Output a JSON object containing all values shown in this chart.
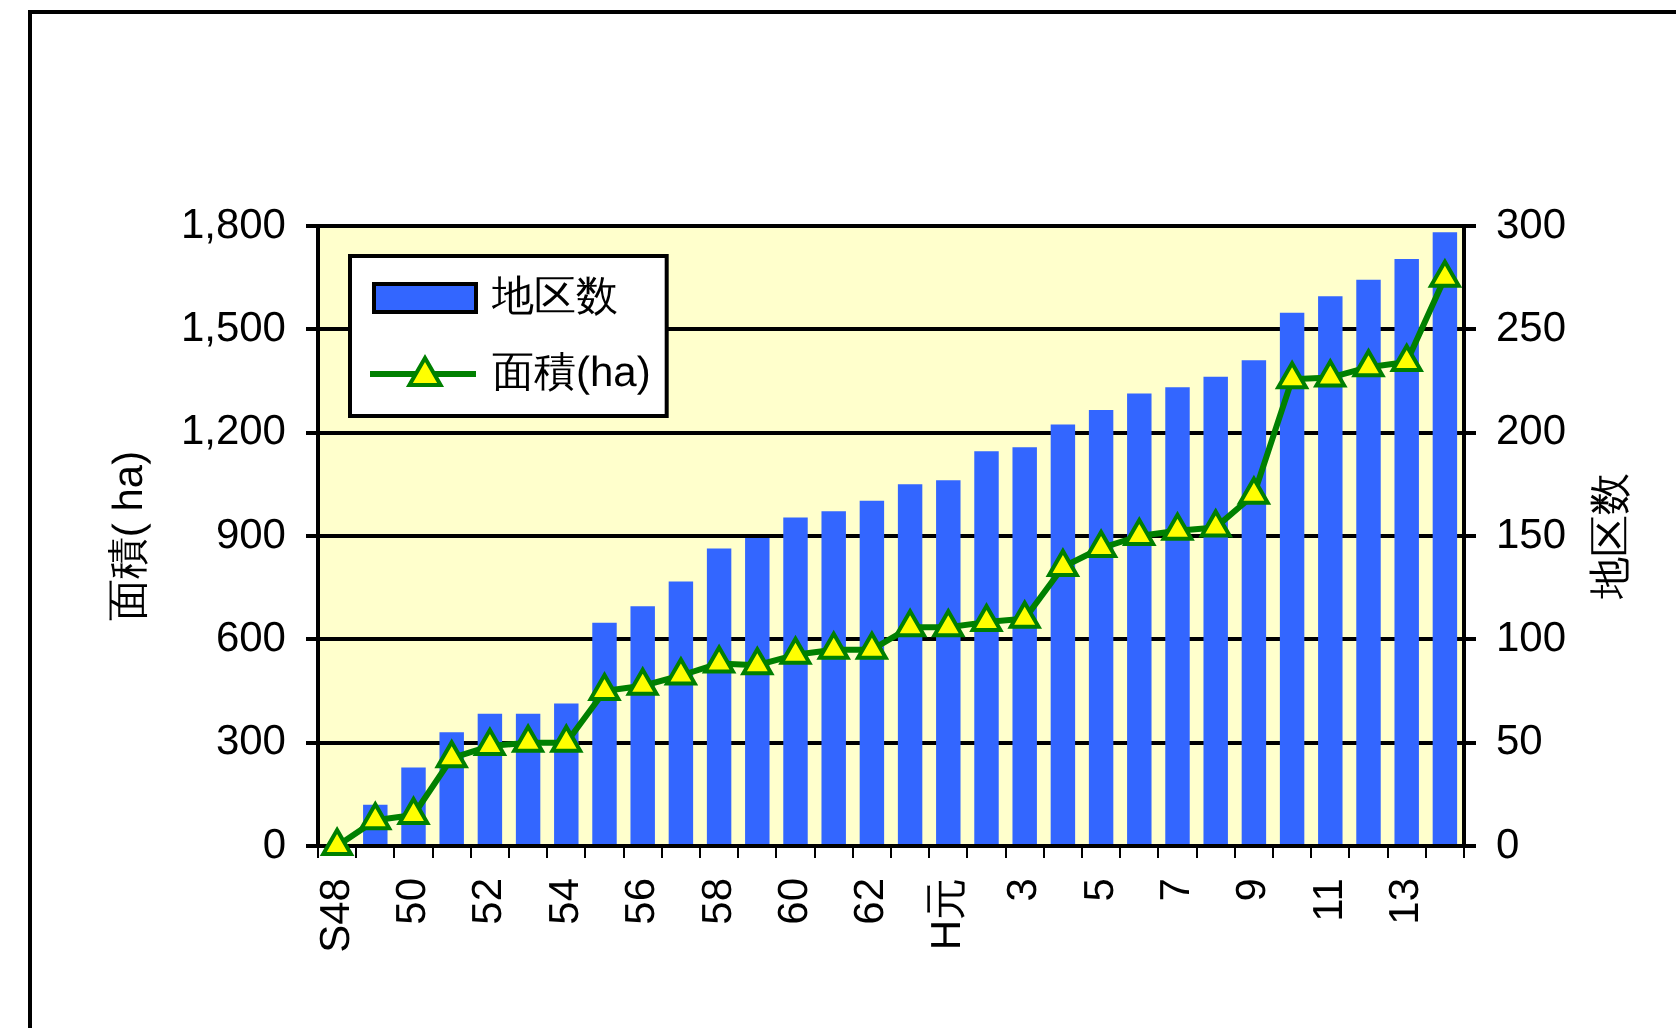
{
  "chart_data": {
    "type": "bar",
    "ylabel": "面積( ha)",
    "y2label": "地区数",
    "categories": [
      "S48",
      null,
      "50",
      null,
      "52",
      null,
      "54",
      null,
      "56",
      null,
      "58",
      null,
      "60",
      null,
      "62",
      null,
      "H元",
      null,
      "3",
      null,
      "5",
      null,
      "7",
      null,
      "9",
      null,
      "11",
      null,
      "13",
      null
    ],
    "series": [
      {
        "name": "地区数",
        "axis": "y2",
        "color": "#3366ff",
        "values": [
          0,
          20,
          38,
          55,
          64,
          64,
          69,
          108,
          116,
          128,
          144,
          149,
          159,
          162,
          167,
          175,
          177,
          191,
          193,
          204,
          211,
          219,
          222,
          227,
          235,
          258,
          266,
          274,
          284,
          297
        ]
      },
      {
        "name": "面積(ha)",
        "type": "line",
        "color": "#008000",
        "values": [
          0,
          75,
          90,
          255,
          290,
          300,
          300,
          450,
          465,
          495,
          530,
          525,
          555,
          570,
          570,
          635,
          635,
          650,
          660,
          810,
          865,
          900,
          915,
          925,
          1020,
          1355,
          1360,
          1390,
          1405,
          1650
        ]
      }
    ],
    "marker": "triangle",
    "ylim": [
      0,
      1800
    ],
    "yticks": [
      0,
      300,
      600,
      900,
      {
        "value": 1200,
        "label": "1,200"
      },
      {
        "value": 1500,
        "label": "1,500"
      },
      {
        "value": 1800,
        "label": "1,800"
      }
    ],
    "y2lim": [
      0,
      300
    ],
    "y2ticks": [
      0,
      50,
      100,
      150,
      200,
      250,
      300
    ],
    "grid": "y",
    "legend": "top left"
  }
}
